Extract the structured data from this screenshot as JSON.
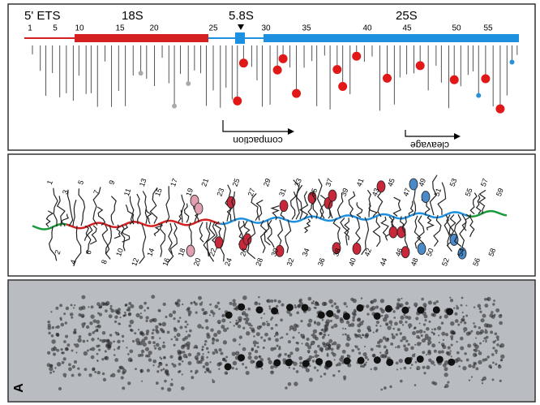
{
  "panel_top": {
    "ets": "5' ETS",
    "s18": "18S",
    "s58": "5.8S",
    "s25": "25S",
    "ticks": [
      1,
      5,
      10,
      15,
      20,
      25,
      30,
      35,
      40,
      45,
      50,
      55
    ],
    "compaction": "compaction",
    "cleavage": "cleavage"
  },
  "panel_middle": {
    "labels": [
      1,
      2,
      3,
      4,
      5,
      6,
      7,
      8,
      9,
      10,
      11,
      12,
      13,
      14,
      15,
      16,
      17,
      18,
      19,
      20,
      21,
      22,
      23,
      24,
      25,
      26,
      27,
      28,
      29,
      30,
      31,
      32,
      33,
      34,
      35,
      36,
      37,
      38,
      39,
      40,
      41,
      42,
      43,
      44,
      45,
      46,
      47,
      48,
      49,
      50,
      51,
      52,
      53,
      54,
      55,
      56,
      57,
      58,
      59
    ]
  },
  "panel_bottom": {
    "label": "A"
  }
}
